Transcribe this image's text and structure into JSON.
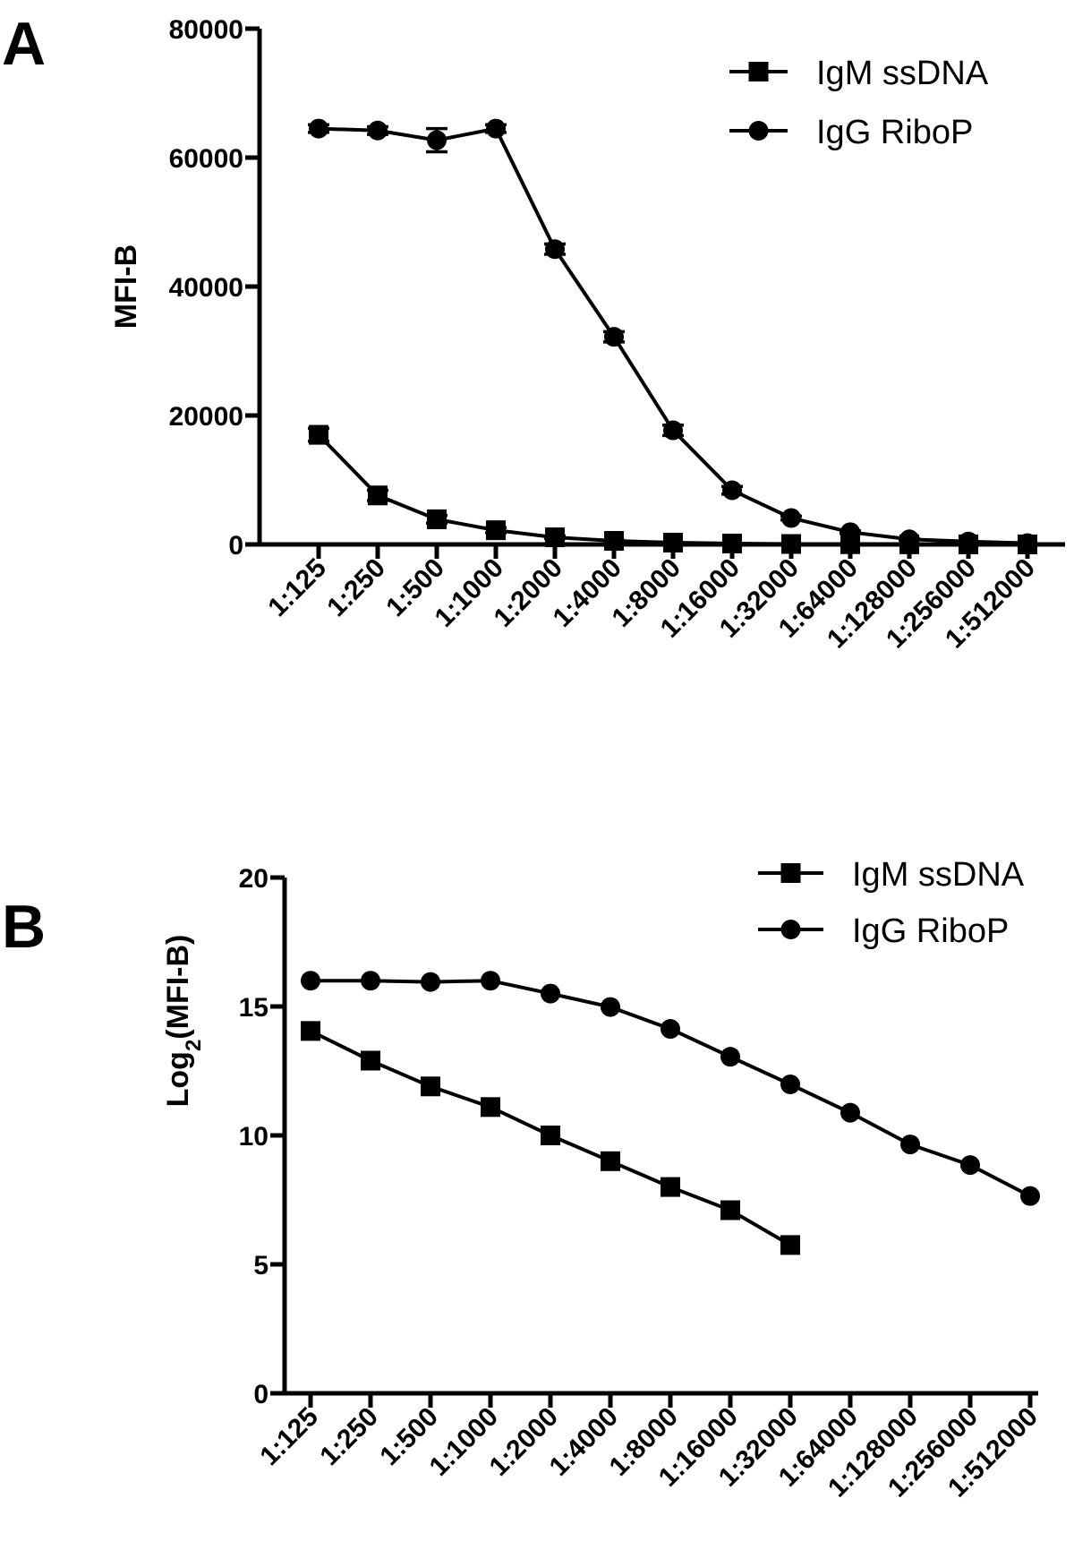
{
  "chart_data": [
    {
      "panel": "A",
      "type": "line",
      "categories": [
        "1:125",
        "1:250",
        "1:500",
        "1:1000",
        "1:2000",
        "1:4000",
        "1:8000",
        "1:16000",
        "1:32000",
        "1:64000",
        "1:128000",
        "1:256000",
        "1:512000"
      ],
      "ylabel": "MFI-B",
      "ylim": [
        0,
        80000
      ],
      "yticks": [
        0,
        20000,
        40000,
        60000,
        80000
      ],
      "ytick_labels": [
        "0",
        "20000",
        "40000",
        "60000",
        "80000"
      ],
      "legend_position": "top-right",
      "series": [
        {
          "name": "IgM ssDNA",
          "marker": "square",
          "values": [
            17000,
            7600,
            3900,
            2200,
            1100,
            550,
            280,
            140,
            70,
            35,
            18,
            9,
            5
          ],
          "errors": [
            1000,
            800,
            600,
            400,
            200,
            100,
            0,
            0,
            0,
            0,
            0,
            0,
            0
          ]
        },
        {
          "name": "IgG RiboP",
          "marker": "circle",
          "values": [
            64500,
            64200,
            62700,
            64500,
            45800,
            32200,
            17700,
            8400,
            4100,
            1900,
            800,
            450,
            200
          ],
          "errors": [
            600,
            600,
            1800,
            600,
            800,
            800,
            800,
            600,
            300,
            200,
            100,
            0,
            0
          ]
        }
      ]
    },
    {
      "panel": "B",
      "type": "line",
      "categories": [
        "1:125",
        "1:250",
        "1:500",
        "1:1000",
        "1:2000",
        "1:4000",
        "1:8000",
        "1:16000",
        "1:32000",
        "1:64000",
        "1:128000",
        "1:256000",
        "1:512000"
      ],
      "ylabel_main": "Log",
      "ylabel_sub": "2",
      "ylabel_rest": "(MFI-B)",
      "ylim": [
        0,
        20
      ],
      "yticks": [
        0,
        5,
        10,
        15,
        20
      ],
      "ytick_labels": [
        "0",
        "5",
        "10",
        "15",
        "20"
      ],
      "legend_position": "top-right",
      "series": [
        {
          "name": "IgM ssDNA",
          "marker": "square",
          "values": [
            14.05,
            12.9,
            11.9,
            11.1,
            10.0,
            9.0,
            8.0,
            7.1,
            5.75,
            null,
            null,
            null,
            null
          ]
        },
        {
          "name": "IgG RiboP",
          "marker": "circle",
          "values": [
            16.0,
            16.0,
            15.95,
            16.0,
            15.5,
            14.98,
            14.13,
            13.05,
            11.98,
            10.88,
            9.65,
            8.85,
            7.65
          ]
        }
      ]
    }
  ]
}
